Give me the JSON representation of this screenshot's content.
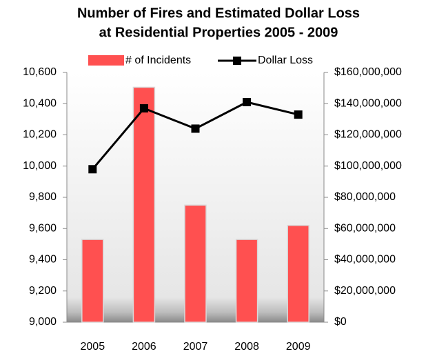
{
  "chart_data": {
    "type": "bar",
    "title": [
      "Number of Fires and Estimated Dollar Loss",
      "at Residential Properties 2005 - 2009"
    ],
    "categories": [
      "2005",
      "2006",
      "2007",
      "2008",
      "2009"
    ],
    "series": [
      {
        "name": "# of Incidents",
        "color": "#ff5050",
        "values": [
          9530,
          10505,
          9750,
          9530,
          9620
        ]
      },
      {
        "name": "Dollar Loss",
        "type": "line",
        "axis": "y2",
        "color": "#000000",
        "values": [
          98000000,
          137000000,
          124000000,
          141000000,
          133000000
        ]
      }
    ],
    "ylim": [
      9000,
      10600
    ],
    "yticks": [
      {
        "value": 9000,
        "label": "9,000"
      },
      {
        "value": 9200,
        "label": "9,200"
      },
      {
        "value": 9400,
        "label": "9,400"
      },
      {
        "value": 9600,
        "label": "9,600"
      },
      {
        "value": 9800,
        "label": "9,800"
      },
      {
        "value": 10000,
        "label": "10,000"
      },
      {
        "value": 10200,
        "label": "10,200"
      },
      {
        "value": 10400,
        "label": "10,400"
      },
      {
        "value": 10600,
        "label": "10,600"
      }
    ],
    "y2lim": [
      0,
      160000000
    ],
    "y2ticks": [
      {
        "value": 0,
        "label": "$0"
      },
      {
        "value": 20000000,
        "label": "$20,000,000"
      },
      {
        "value": 40000000,
        "label": "$40,000,000"
      },
      {
        "value": 60000000,
        "label": "$60,000,000"
      },
      {
        "value": 80000000,
        "label": "$80,000,000"
      },
      {
        "value": 100000000,
        "label": "$100,000,000"
      },
      {
        "value": 120000000,
        "label": "$120,000,000"
      },
      {
        "value": 140000000,
        "label": "$140,000,000"
      },
      {
        "value": 160000000,
        "label": "$160,000,000"
      }
    ],
    "grid": false,
    "legend": "top"
  }
}
